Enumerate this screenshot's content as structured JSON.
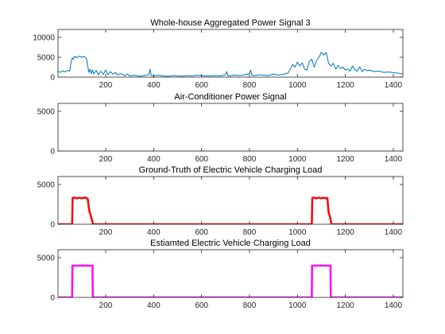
{
  "chart_data": [
    {
      "type": "line",
      "title": "Whole-house Aggregated Power Signal 3",
      "xlabel": "",
      "ylabel": "",
      "xlim": [
        1,
        1440
      ],
      "ylim": [
        0,
        12000
      ],
      "xticks": [
        200,
        400,
        600,
        800,
        1000,
        1200,
        1400
      ],
      "yticks": [
        0,
        5000,
        10000
      ],
      "grid": false,
      "series": [
        {
          "color": "#0072BD",
          "x": [
            1,
            10,
            20,
            30,
            40,
            50,
            55,
            60,
            65,
            70,
            80,
            90,
            100,
            110,
            120,
            125,
            130,
            135,
            140,
            145,
            150,
            160,
            170,
            180,
            190,
            200,
            210,
            220,
            230,
            240,
            250,
            260,
            270,
            280,
            290,
            300,
            320,
            340,
            360,
            380,
            385,
            390,
            400,
            420,
            440,
            460,
            480,
            500,
            520,
            540,
            560,
            580,
            600,
            620,
            640,
            660,
            680,
            700,
            705,
            710,
            720,
            740,
            760,
            780,
            800,
            805,
            810,
            820,
            840,
            860,
            880,
            900,
            920,
            940,
            960,
            970,
            980,
            990,
            1000,
            1010,
            1020,
            1030,
            1040,
            1050,
            1060,
            1070,
            1080,
            1090,
            1100,
            1110,
            1120,
            1130,
            1140,
            1150,
            1160,
            1170,
            1180,
            1190,
            1200,
            1210,
            1220,
            1230,
            1240,
            1250,
            1260,
            1270,
            1280,
            1290,
            1300,
            1320,
            1340,
            1360,
            1380,
            1400,
            1420,
            1440
          ],
          "y": [
            1500,
            1200,
            1600,
            1300,
            1700,
            1500,
            3500,
            4800,
            4500,
            5200,
            4900,
            5300,
            5000,
            5200,
            4700,
            2800,
            1200,
            2000,
            900,
            1800,
            800,
            1700,
            600,
            1500,
            700,
            1800,
            600,
            1400,
            700,
            1200,
            500,
            900,
            700,
            300,
            800,
            300,
            500,
            200,
            400,
            600,
            2000,
            400,
            300,
            500,
            300,
            200,
            400,
            300,
            250,
            400,
            300,
            500,
            400,
            300,
            350,
            400,
            300,
            600,
            1400,
            300,
            400,
            500,
            400,
            600,
            900,
            1800,
            500,
            400,
            600,
            500,
            400,
            800,
            500,
            700,
            1000,
            2000,
            3200,
            2500,
            3800,
            2800,
            3600,
            2000,
            1800,
            4000,
            4500,
            2500,
            4200,
            5000,
            6300,
            5500,
            6200,
            3500,
            2800,
            3500,
            2000,
            3000,
            2200,
            2500,
            1800,
            2000,
            1500,
            2800,
            1800,
            1500,
            2600,
            1400,
            2000,
            1600,
            1800,
            1400,
            1500,
            1200,
            1300,
            1100,
            1000,
            800
          ]
        }
      ]
    },
    {
      "type": "line",
      "title": "Air-Conditioner Power Signal",
      "xlabel": "",
      "ylabel": "",
      "xlim": [
        1,
        1440
      ],
      "ylim": [
        0,
        6000
      ],
      "xticks": [
        200,
        400,
        600,
        800,
        1000,
        1200,
        1400
      ],
      "yticks": [
        0,
        5000
      ],
      "grid": false,
      "series": [
        {
          "color": "#0072BD",
          "x": [
            1,
            1440
          ],
          "y": [
            0,
            0
          ]
        }
      ]
    },
    {
      "type": "line",
      "title": "Ground-Truth of Electric Vehicle Charging Load",
      "xlabel": "",
      "ylabel": "",
      "xlim": [
        1,
        1440
      ],
      "ylim": [
        0,
        6000
      ],
      "xticks": [
        200,
        400,
        600,
        800,
        1000,
        1200,
        1400
      ],
      "yticks": [
        0,
        5000
      ],
      "grid": false,
      "series": [
        {
          "color": "#FF0000",
          "x": [
            1,
            60,
            62,
            70,
            80,
            90,
            100,
            110,
            120,
            125,
            130,
            133,
            137,
            140,
            145,
            147,
            148,
            1060,
            1062,
            1070,
            1080,
            1090,
            1100,
            1110,
            1120,
            1125,
            1130,
            1135,
            1140,
            1142,
            1440
          ],
          "y": [
            0,
            0,
            3300,
            3350,
            3250,
            3350,
            3250,
            3350,
            3300,
            3200,
            2000,
            1500,
            1200,
            800,
            300,
            0,
            0,
            0,
            3300,
            3350,
            3250,
            3350,
            3250,
            3350,
            3250,
            3300,
            1500,
            1000,
            300,
            0,
            0
          ]
        }
      ]
    },
    {
      "type": "line",
      "title": "Estiamted Electric Vehicle Charging Load",
      "xlabel": "",
      "ylabel": "",
      "xlim": [
        1,
        1440
      ],
      "ylim": [
        0,
        6000
      ],
      "xticks": [
        200,
        400,
        600,
        800,
        1000,
        1200,
        1400
      ],
      "yticks": [
        0,
        5000
      ],
      "grid": false,
      "series": [
        {
          "color": "#FF00FF",
          "x": [
            1,
            60,
            61,
            145,
            146,
            1060,
            1061,
            1138,
            1139,
            1440
          ],
          "y": [
            0,
            0,
            4000,
            4000,
            0,
            0,
            4000,
            4000,
            0,
            0
          ]
        }
      ]
    }
  ]
}
